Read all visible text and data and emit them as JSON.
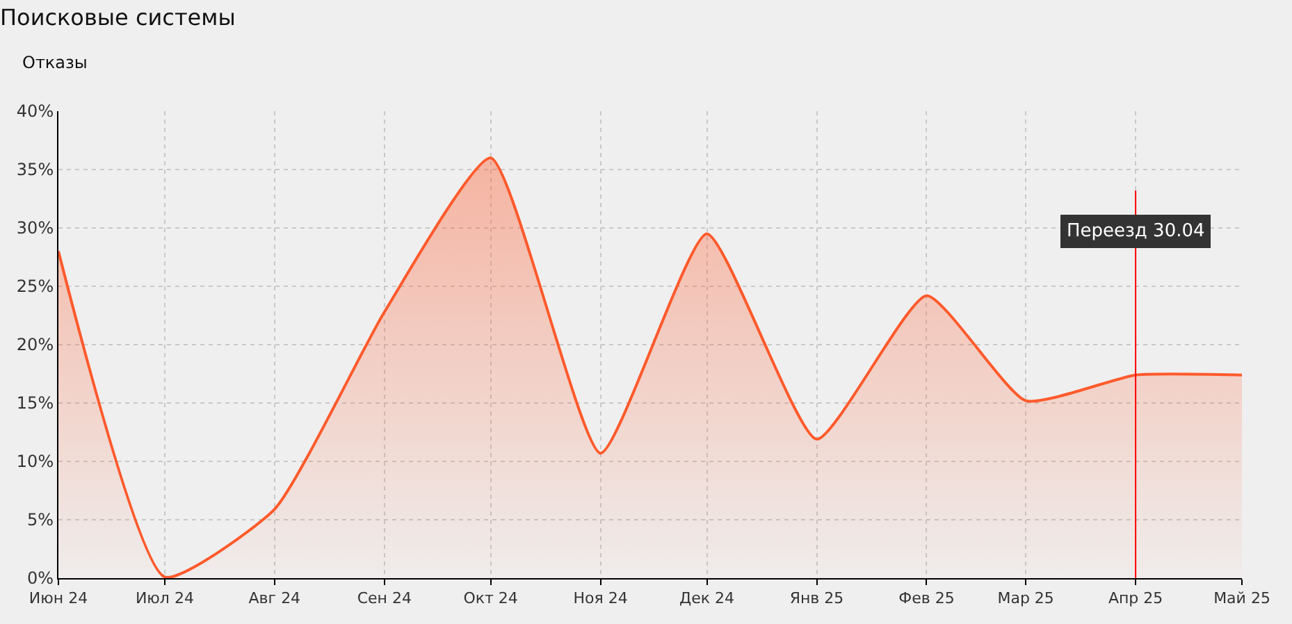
{
  "chart_data": {
    "type": "area",
    "title": "Поисковые системы",
    "subtitle": "Отказы",
    "x": [
      "2024-06",
      "2024-07",
      "2024-08",
      "2024-09",
      "2024-10",
      "2024-11",
      "2024-12",
      "2025-01",
      "2025-02",
      "2025-03",
      "2025-04",
      "2025-05"
    ],
    "series": [
      {
        "color": "#ff5a2c",
        "values": [
          28.0,
          0.1,
          5.9,
          22.8,
          36.0,
          10.7,
          29.5,
          11.9,
          24.2,
          15.2,
          17.4,
          17.4
        ]
      }
    ],
    "xlim": [
      "2024-06",
      "2025-05"
    ],
    "xticks": [
      {
        "value": "2024-06",
        "label": "Июн 24"
      },
      {
        "value": "2024-07",
        "label": "Июл 24"
      },
      {
        "value": "2024-08",
        "label": "Авг 24"
      },
      {
        "value": "2024-09",
        "label": "Сен 24"
      },
      {
        "value": "2024-10",
        "label": "Окт 24"
      },
      {
        "value": "2024-11",
        "label": "Ноя 24"
      },
      {
        "value": "2024-12",
        "label": "Дек 24"
      },
      {
        "value": "2025-01",
        "label": "Янв 25"
      },
      {
        "value": "2025-02",
        "label": "Фев 25"
      },
      {
        "value": "2025-03",
        "label": "Мар 25"
      },
      {
        "value": "2025-04",
        "label": "Апр 25"
      },
      {
        "value": "2025-05",
        "label": "Май 25"
      }
    ],
    "ylim": [
      0,
      40
    ],
    "yticks": [
      {
        "value": 0,
        "label": "0%"
      },
      {
        "value": 5,
        "label": "5%"
      },
      {
        "value": 10,
        "label": "10%"
      },
      {
        "value": 15,
        "label": "15%"
      },
      {
        "value": 20,
        "label": "20%"
      },
      {
        "value": 25,
        "label": "25%"
      },
      {
        "value": 30,
        "label": "30%"
      },
      {
        "value": 35,
        "label": "35%"
      },
      {
        "value": 40,
        "label": "40%"
      }
    ],
    "ref_lines": [
      {
        "axis": "x",
        "value": "2025-04",
        "label": "Переезд 30.04",
        "color": "#ff0000"
      }
    ],
    "grid": true,
    "line_style": "solid",
    "marker": "none"
  }
}
